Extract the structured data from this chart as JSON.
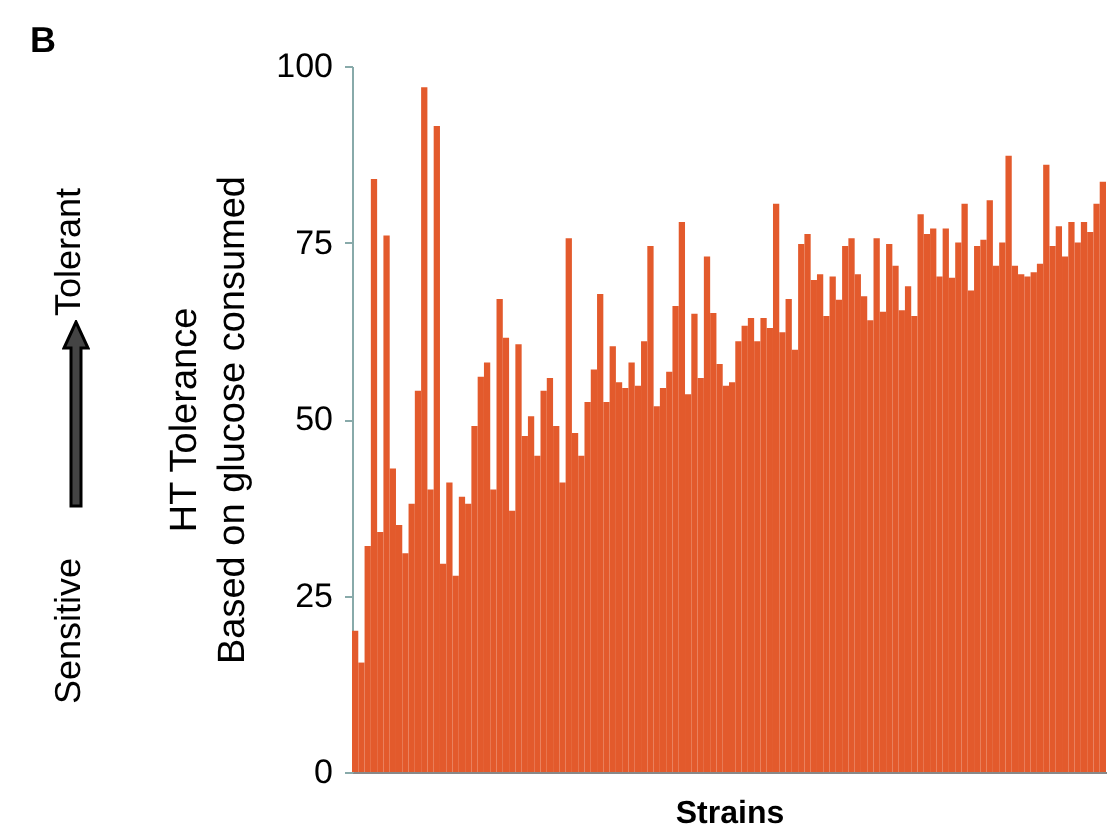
{
  "chart_data": {
    "type": "bar",
    "xlabel": "Strains",
    "ylabel": "HT Tolerance\nBased on glucose consumed",
    "annotations": [
      "B",
      "Sensitive",
      "Tolerant"
    ],
    "color": "#e35a2c",
    "ylim": [
      0,
      100
    ],
    "yticks": [
      0,
      25,
      50,
      75,
      100
    ],
    "grid": false,
    "categories": [
      null,
      null,
      null,
      null,
      null,
      null,
      null,
      null,
      null,
      null,
      null,
      null,
      null,
      null,
      null,
      null,
      null,
      null,
      null,
      null,
      null,
      null,
      null,
      null,
      null,
      null,
      null,
      null,
      null,
      null,
      null,
      null,
      null,
      null,
      null,
      null,
      null,
      null,
      null,
      null,
      null,
      null,
      null,
      null,
      null,
      null,
      null,
      null,
      null,
      null,
      null,
      null,
      null,
      null,
      null,
      null,
      null,
      null,
      null,
      null,
      null,
      null,
      null,
      null,
      null,
      null,
      null,
      null,
      null,
      null,
      null,
      null,
      null,
      null,
      null,
      null,
      null,
      null,
      null,
      null,
      null,
      null,
      null,
      null,
      null,
      null,
      null,
      null,
      null,
      null,
      null,
      null,
      null,
      null,
      null,
      null,
      null,
      null,
      null,
      null,
      null,
      null,
      null,
      null,
      null,
      null,
      null,
      null,
      null,
      null,
      null,
      null,
      null,
      null,
      null,
      null,
      null,
      null,
      null,
      null
    ],
    "values": [
      20,
      15.5,
      32,
      84,
      34,
      76,
      43,
      35,
      31,
      38,
      54,
      97,
      40,
      91.5,
      29.5,
      41,
      27.8,
      39,
      38,
      49,
      56,
      58,
      40,
      67,
      61.5,
      37,
      60.6,
      47.6,
      50.4,
      44.8,
      54,
      55.8,
      49,
      41,
      75.6,
      48,
      44.8,
      52.4,
      57,
      67.7,
      52.4,
      60.3,
      55.2,
      54.4,
      58,
      54.7,
      61,
      74.5,
      51.8,
      54.4,
      56.7,
      66,
      77.9,
      53.5,
      64.9,
      55.8,
      73,
      65,
      57.8,
      54.7,
      55.2,
      61,
      63.2,
      64.3,
      61,
      64.3,
      62.9,
      80.5,
      62.3,
      67,
      59.8,
      74.8,
      76.2,
      69.7,
      70.5,
      64.6,
      70.2,
      66.9,
      74.5,
      75.6,
      70.5,
      67.4,
      64,
      75.6,
      65.2,
      74.8,
      71.7,
      65.4,
      68.8,
      64.6,
      79,
      76.2,
      77,
      70.2,
      77,
      70,
      75,
      80.5,
      68.2,
      74.5,
      75.4,
      81,
      71.7,
      75,
      87.3,
      71.7,
      70.5,
      70.2,
      70.8,
      72,
      86,
      74.5,
      77.3,
      73,
      77.9,
      75,
      77.9,
      76.5,
      80.5,
      83.6
    ]
  }
}
